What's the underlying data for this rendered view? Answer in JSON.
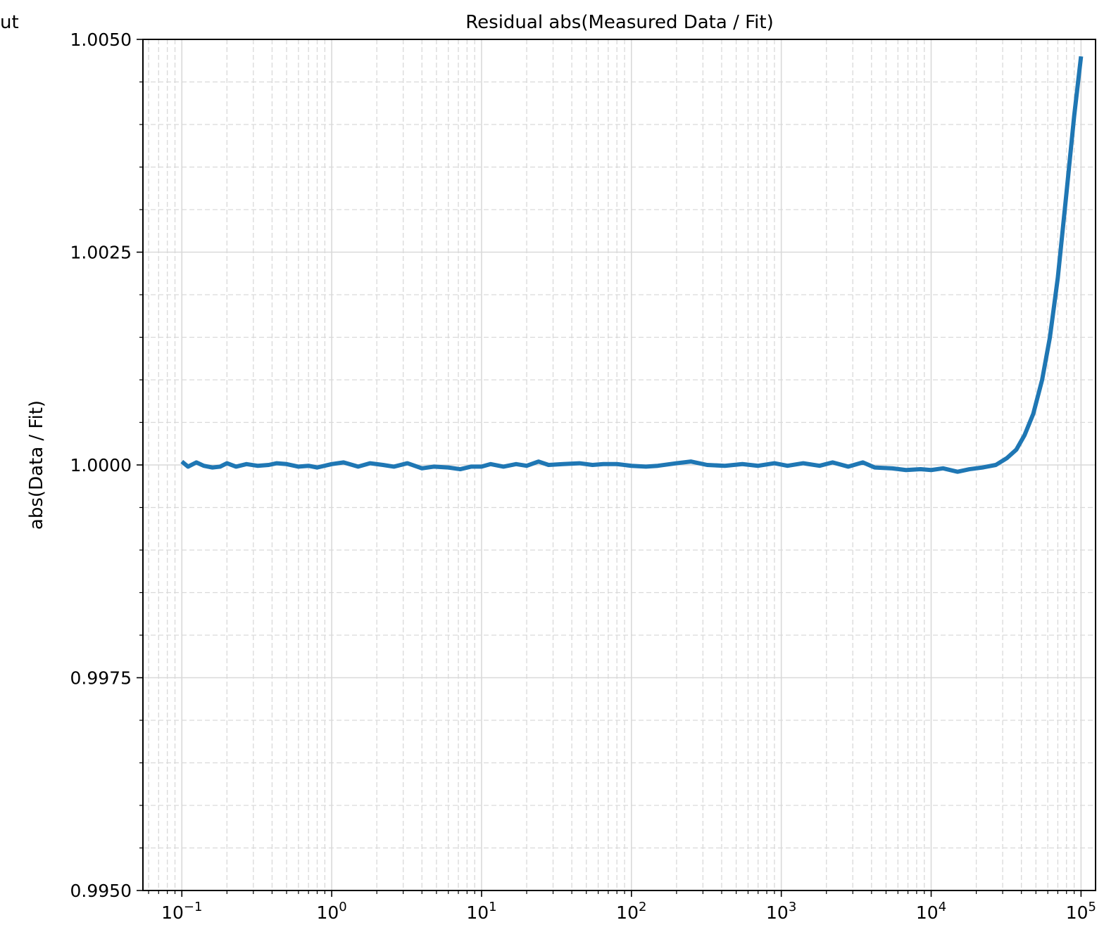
{
  "corner_text": "ut",
  "chart_data": {
    "type": "line",
    "title": "Residual abs(Measured Data / Fit)",
    "xlabel": "",
    "ylabel": "abs(Data / Fit)",
    "xscale": "log",
    "xlim": [
      0.055,
      125000
    ],
    "ylim": [
      0.995,
      1.005
    ],
    "xticks": [
      {
        "value": 0.1,
        "base": "10",
        "exp": "−1"
      },
      {
        "value": 1,
        "base": "10",
        "exp": "0"
      },
      {
        "value": 10,
        "base": "10",
        "exp": "1"
      },
      {
        "value": 100,
        "base": "10",
        "exp": "2"
      },
      {
        "value": 1000,
        "base": "10",
        "exp": "3"
      },
      {
        "value": 10000,
        "base": "10",
        "exp": "4"
      },
      {
        "value": 100000,
        "base": "10",
        "exp": "5"
      }
    ],
    "yticks": [
      {
        "value": 0.995,
        "label": "0.9950"
      },
      {
        "value": 0.9975,
        "label": "0.9975"
      },
      {
        "value": 1.0,
        "label": "1.0000"
      },
      {
        "value": 1.0025,
        "label": "1.0025"
      },
      {
        "value": 1.005,
        "label": "1.0050"
      }
    ],
    "grid": true,
    "series": [
      {
        "color": "#1f77b4",
        "points": [
          [
            0.1,
            1.00004
          ],
          [
            0.11,
            0.99998
          ],
          [
            0.125,
            1.00003
          ],
          [
            0.14,
            0.99999
          ],
          [
            0.16,
            0.99997
          ],
          [
            0.18,
            0.99998
          ],
          [
            0.2,
            1.00002
          ],
          [
            0.23,
            0.99998
          ],
          [
            0.27,
            1.00001
          ],
          [
            0.32,
            0.99999
          ],
          [
            0.38,
            1.0
          ],
          [
            0.43,
            1.00002
          ],
          [
            0.5,
            1.00001
          ],
          [
            0.6,
            0.99998
          ],
          [
            0.7,
            0.99999
          ],
          [
            0.8,
            0.99997
          ],
          [
            1.0,
            1.00001
          ],
          [
            1.2,
            1.00003
          ],
          [
            1.5,
            0.99998
          ],
          [
            1.8,
            1.00002
          ],
          [
            2.2,
            1.0
          ],
          [
            2.6,
            0.99998
          ],
          [
            3.2,
            1.00002
          ],
          [
            4.0,
            0.99996
          ],
          [
            4.8,
            0.99998
          ],
          [
            6.0,
            0.99997
          ],
          [
            7.2,
            0.99995
          ],
          [
            8.5,
            0.99998
          ],
          [
            10.0,
            0.99998
          ],
          [
            11.5,
            1.00001
          ],
          [
            14.0,
            0.99998
          ],
          [
            17.0,
            1.00001
          ],
          [
            20.0,
            0.99999
          ],
          [
            24.0,
            1.00004
          ],
          [
            28.0,
            1.0
          ],
          [
            35.0,
            1.00001
          ],
          [
            45.0,
            1.00002
          ],
          [
            55.0,
            1.0
          ],
          [
            65.0,
            1.00001
          ],
          [
            80.0,
            1.00001
          ],
          [
            100.0,
            0.99999
          ],
          [
            125.0,
            0.99998
          ],
          [
            150.0,
            0.99999
          ],
          [
            200.0,
            1.00002
          ],
          [
            250.0,
            1.00004
          ],
          [
            320.0,
            1.0
          ],
          [
            420.0,
            0.99999
          ],
          [
            550.0,
            1.00001
          ],
          [
            700.0,
            0.99999
          ],
          [
            900.0,
            1.00002
          ],
          [
            1100.0,
            0.99999
          ],
          [
            1400.0,
            1.00002
          ],
          [
            1800.0,
            0.99999
          ],
          [
            2200.0,
            1.00003
          ],
          [
            2800.0,
            0.99998
          ],
          [
            3500.0,
            1.00003
          ],
          [
            4200.0,
            0.99997
          ],
          [
            5500.0,
            0.99996
          ],
          [
            6800.0,
            0.99994
          ],
          [
            8500.0,
            0.99995
          ],
          [
            10000.0,
            0.99994
          ],
          [
            12000.0,
            0.99996
          ],
          [
            15000.0,
            0.99992
          ],
          [
            18000.0,
            0.99995
          ],
          [
            22000.0,
            0.99997
          ],
          [
            27000.0,
            1.0
          ],
          [
            32000.0,
            1.00008
          ],
          [
            37000.0,
            1.00018
          ],
          [
            42000.0,
            1.00035
          ],
          [
            48000.0,
            1.0006
          ],
          [
            55000.0,
            1.001
          ],
          [
            62000.0,
            1.0015
          ],
          [
            70000.0,
            1.0022
          ],
          [
            80000.0,
            1.0032
          ],
          [
            90000.0,
            1.0041
          ],
          [
            100000.0,
            1.0048
          ]
        ]
      }
    ]
  }
}
